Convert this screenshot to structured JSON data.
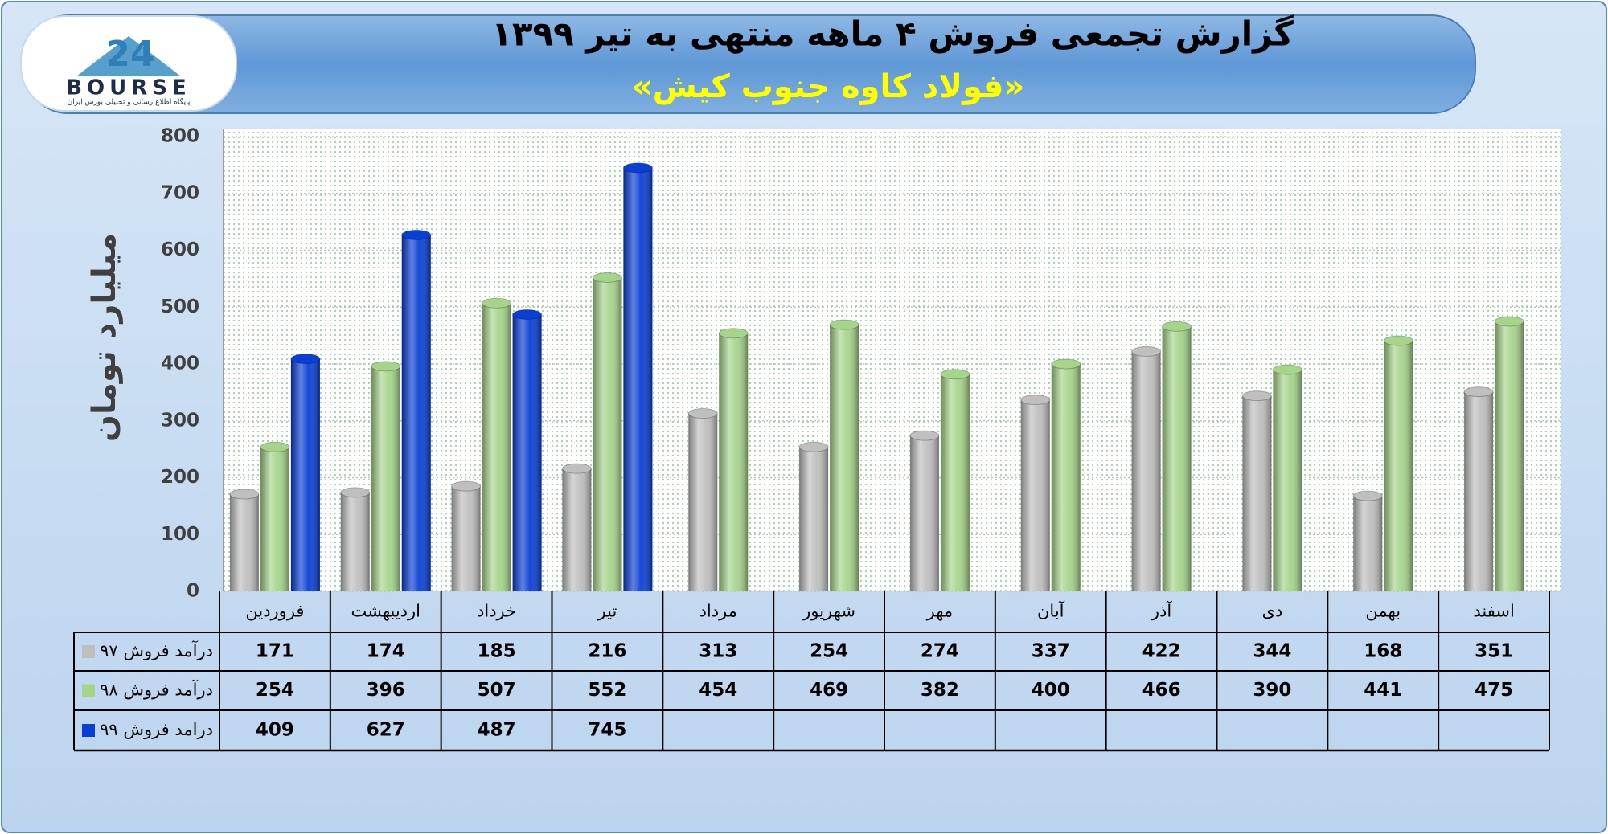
{
  "chart_data": {
    "type": "bar",
    "title": "گزارش تجمعی فروش ۴ ماهه منتهی به تیر ۱۳۹۹",
    "subtitle": "«فولاد کاوه جنوب کیش»",
    "y_label": "میلیارد تومان",
    "logo": {
      "number": "24",
      "text": "BOURSE",
      "caption": "پایگاه اطلاع رسانی و تحلیلی بورس ایران"
    },
    "categories": [
      "فروردین",
      "اردیبهشت",
      "خرداد",
      "تیر",
      "مرداد",
      "شهریور",
      "مهر",
      "آبان",
      "آذر",
      "دی",
      "بهمن",
      "اسفند"
    ],
    "series": [
      {
        "name": "درآمد فروش ۹۷",
        "color": "#bfbfbf",
        "values": [
          171,
          174,
          185,
          216,
          313,
          254,
          274,
          337,
          422,
          344,
          168,
          351
        ]
      },
      {
        "name": "درآمد فروش ۹۸",
        "color": "#a6d48a",
        "values": [
          254,
          396,
          507,
          552,
          454,
          469,
          382,
          400,
          466,
          390,
          441,
          475
        ]
      },
      {
        "name": "درامد فروش ۹۹",
        "color": "#0a3fd6",
        "values": [
          409,
          627,
          487,
          745,
          null,
          null,
          null,
          null,
          null,
          null,
          null,
          null
        ]
      }
    ],
    "ylim": [
      0,
      800
    ],
    "yticks": [
      0,
      100,
      200,
      300,
      400,
      500,
      600,
      700,
      800
    ],
    "grid": true
  }
}
